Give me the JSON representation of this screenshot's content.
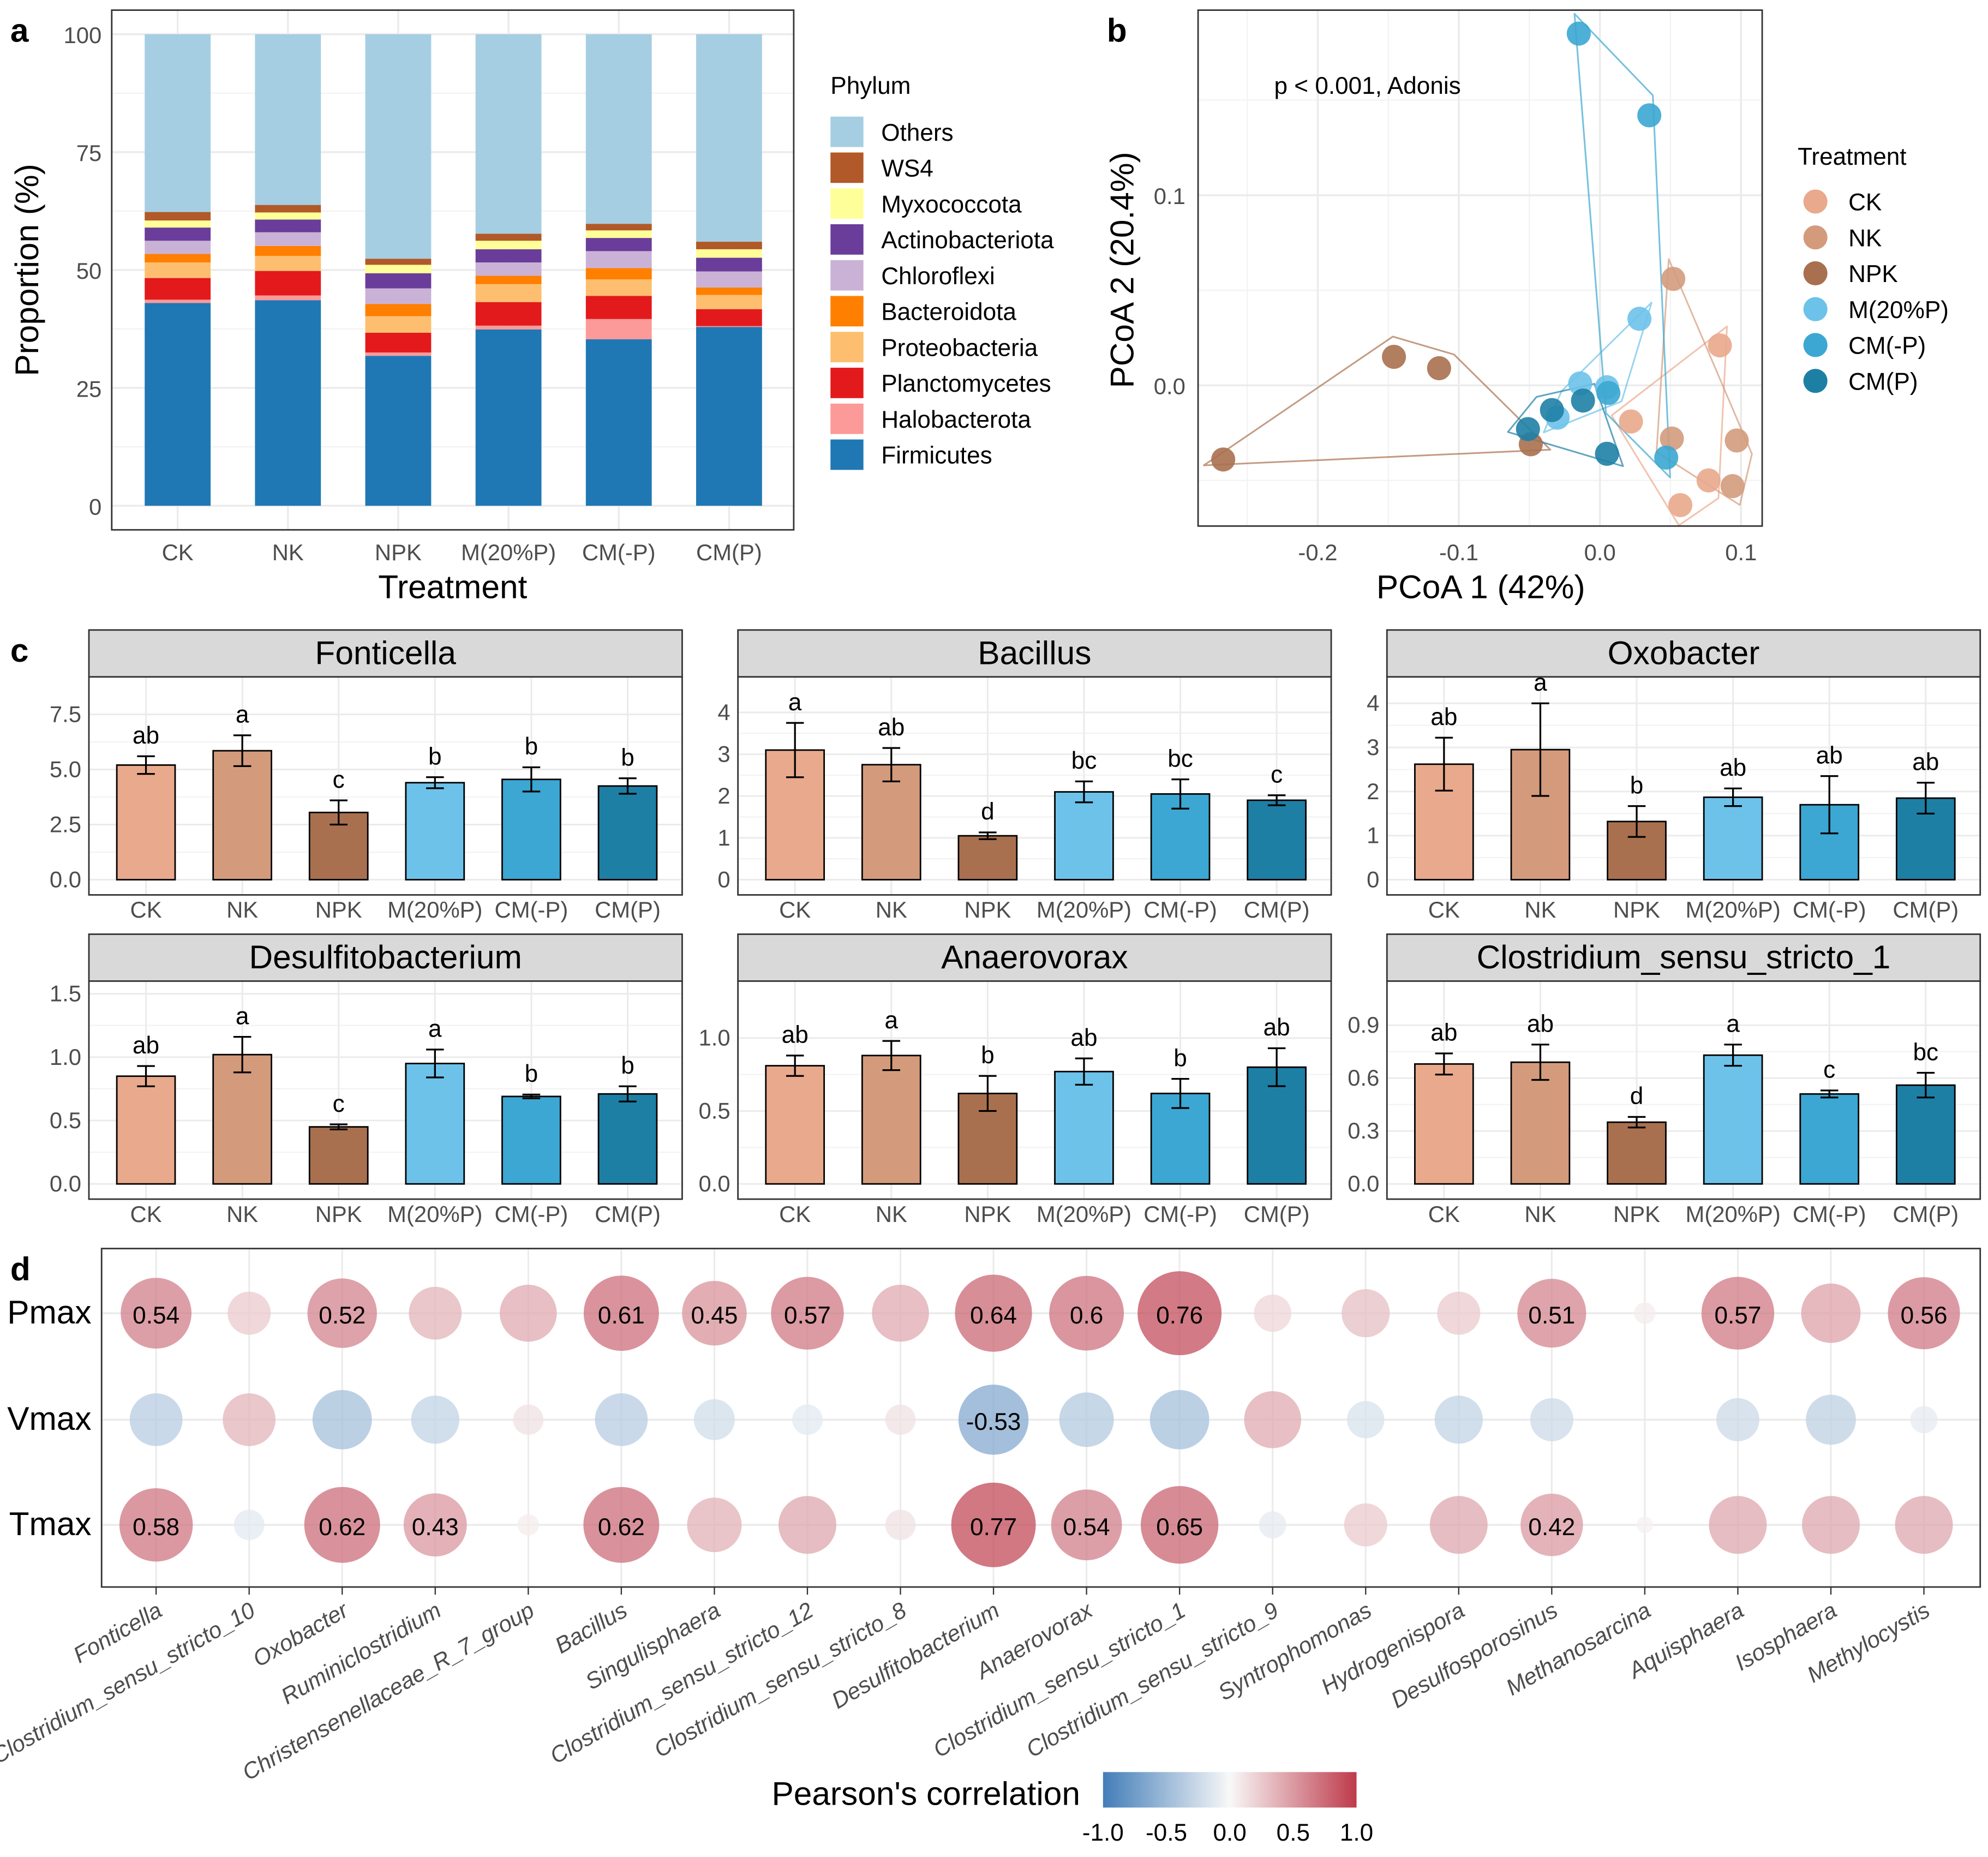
{
  "treatment_colors": {
    "CK": "#E9A98C",
    "NK": "#D39B7C",
    "NPK": "#A9704F",
    "M(20%P)": "#6DC2EA",
    "CM(-P)": "#3BA7D2",
    "CM(P)": "#1E7FA5"
  },
  "chart_data": [
    {
      "panel_label": "a",
      "type": "bar",
      "stacked": true,
      "categories": [
        "CK",
        "NK",
        "NPK",
        "M(20%P)",
        "CM(-P)",
        "CM(P)"
      ],
      "xlabel": "Treatment",
      "ylabel": "Proportion (%)",
      "ylim": [
        0,
        100
      ],
      "yticks": [
        0,
        25,
        50,
        75,
        100
      ],
      "grid": true,
      "legend_title": "Phylum",
      "legend_position": "right",
      "series": [
        {
          "name": "Firmicutes",
          "color": "#1F78B4",
          "values": [
            43.0,
            43.6,
            31.8,
            37.4,
            35.3,
            37.9
          ]
        },
        {
          "name": "Halobacterota",
          "color": "#FB9A99",
          "values": [
            0.7,
            1.0,
            0.7,
            0.8,
            4.3,
            0.2
          ]
        },
        {
          "name": "Planctomycetes",
          "color": "#E31A1C",
          "values": [
            4.6,
            5.2,
            4.2,
            5.0,
            4.9,
            3.6
          ]
        },
        {
          "name": "Proteobacteria",
          "color": "#FDBF6F",
          "values": [
            3.3,
            3.2,
            3.5,
            3.8,
            3.5,
            3.0
          ]
        },
        {
          "name": "Bacteroidota",
          "color": "#FF7F00",
          "values": [
            1.8,
            2.1,
            2.6,
            1.8,
            2.4,
            1.6
          ]
        },
        {
          "name": "Chloroflexi",
          "color": "#CAB2D6",
          "values": [
            2.8,
            2.9,
            3.3,
            2.8,
            3.6,
            3.4
          ]
        },
        {
          "name": "Actinobacteriota",
          "color": "#6A3D9A",
          "values": [
            2.8,
            2.7,
            3.2,
            2.8,
            2.8,
            2.9
          ]
        },
        {
          "name": "Myxococcota",
          "color": "#FFFF99",
          "values": [
            1.5,
            1.5,
            1.8,
            1.8,
            1.6,
            1.8
          ]
        },
        {
          "name": "WS4",
          "color": "#B15928",
          "values": [
            1.8,
            1.6,
            1.3,
            1.5,
            1.4,
            1.6
          ]
        },
        {
          "name": "Others",
          "color": "#A6CEE3",
          "values": [
            37.7,
            36.2,
            47.6,
            42.3,
            40.2,
            44.0
          ]
        }
      ]
    },
    {
      "panel_label": "b",
      "type": "scatter",
      "xlabel": "PCoA 1 (42%)",
      "ylabel": "PCoA 2 (20.4%)",
      "xlim": [
        -0.285,
        0.115
      ],
      "ylim": [
        -0.074,
        0.197
      ],
      "xticks": [
        "-0.2",
        "-0.1",
        "0.0",
        "0.1"
      ],
      "yticks": [
        "0.0",
        "0.1"
      ],
      "grid": true,
      "annotation": "p < 0.001, Adonis",
      "legend_title": "Treatment",
      "legend_position": "right",
      "hulls": true,
      "series": [
        {
          "name": "CK",
          "points": [
            [
              0.022,
              -0.019
            ],
            [
              0.085,
              0.021
            ],
            [
              0.077,
              -0.05
            ],
            [
              0.057,
              -0.063
            ]
          ]
        },
        {
          "name": "NK",
          "points": [
            [
              0.052,
              0.056
            ],
            [
              0.051,
              -0.028
            ],
            [
              0.097,
              -0.029
            ],
            [
              0.094,
              -0.053
            ]
          ]
        },
        {
          "name": "NPK",
          "points": [
            [
              -0.267,
              -0.039
            ],
            [
              -0.146,
              0.015
            ],
            [
              -0.114,
              0.009
            ],
            [
              -0.049,
              -0.031
            ]
          ]
        },
        {
          "name": "M(20%P)",
          "points": [
            [
              0.028,
              0.035
            ],
            [
              -0.014,
              0.001
            ],
            [
              0.005,
              -0.001
            ],
            [
              -0.03,
              -0.017
            ]
          ]
        },
        {
          "name": "CM(-P)",
          "points": [
            [
              -0.015,
              0.185
            ],
            [
              0.035,
              0.142
            ],
            [
              0.047,
              -0.038
            ],
            [
              0.006,
              -0.004
            ]
          ]
        },
        {
          "name": "CM(P)",
          "points": [
            [
              -0.012,
              -0.008
            ],
            [
              -0.034,
              -0.013
            ],
            [
              -0.051,
              -0.023
            ],
            [
              0.005,
              -0.036
            ]
          ]
        }
      ]
    },
    {
      "panel_label": "c",
      "type": "bar",
      "error_bars": "se",
      "categories": [
        "CK",
        "NK",
        "NPK",
        "M(20%P)",
        "CM(-P)",
        "CM(P)"
      ],
      "facets": [
        {
          "title": "Fonticella",
          "ylim": [
            0,
            9.2
          ],
          "yticks": [
            "0.0",
            "2.5",
            "5.0",
            "7.5"
          ],
          "mean": [
            5.2,
            5.85,
            3.05,
            4.4,
            4.55,
            4.25
          ],
          "se": [
            0.4,
            0.7,
            0.55,
            0.25,
            0.55,
            0.35
          ],
          "letters": [
            "ab",
            "a",
            "c",
            "b",
            "b",
            "b"
          ]
        },
        {
          "title": "Bacillus",
          "ylim": [
            0,
            4.85
          ],
          "yticks": [
            "0",
            "1",
            "2",
            "3",
            "4"
          ],
          "mean": [
            3.1,
            2.75,
            1.05,
            2.1,
            2.05,
            1.9
          ],
          "se": [
            0.65,
            0.4,
            0.08,
            0.25,
            0.35,
            0.12
          ],
          "letters": [
            "a",
            "ab",
            "d",
            "bc",
            "bc",
            "c"
          ]
        },
        {
          "title": "Oxobacter",
          "ylim": [
            0,
            4.6
          ],
          "yticks": [
            "0",
            "1",
            "2",
            "3",
            "4"
          ],
          "mean": [
            2.62,
            2.95,
            1.32,
            1.87,
            1.7,
            1.85
          ],
          "se": [
            0.6,
            1.05,
            0.35,
            0.2,
            0.65,
            0.35
          ],
          "letters": [
            "ab",
            "a",
            "b",
            "ab",
            "ab",
            "ab"
          ]
        },
        {
          "title": "Desulfitobacterium",
          "ylim": [
            0,
            1.6
          ],
          "yticks": [
            "0.0",
            "0.5",
            "1.0",
            "1.5"
          ],
          "mean": [
            0.85,
            1.02,
            0.45,
            0.95,
            0.69,
            0.71
          ],
          "se": [
            0.08,
            0.14,
            0.02,
            0.11,
            0.015,
            0.06
          ],
          "letters": [
            "ab",
            "a",
            "c",
            "a",
            "b",
            "b"
          ]
        },
        {
          "title": "Anaerovorax",
          "ylim": [
            0,
            1.39
          ],
          "yticks": [
            "0.0",
            "0.5",
            "1.0"
          ],
          "mean": [
            0.81,
            0.88,
            0.62,
            0.77,
            0.62,
            0.8
          ],
          "se": [
            0.07,
            0.1,
            0.12,
            0.09,
            0.1,
            0.13
          ],
          "letters": [
            "ab",
            "a",
            "b",
            "ab",
            "b",
            "ab"
          ]
        },
        {
          "title": "Clostridium_sensu_stricto_1",
          "ylim": [
            0,
            1.15
          ],
          "yticks": [
            "0.0",
            "0.3",
            "0.6",
            "0.9"
          ],
          "mean": [
            0.68,
            0.69,
            0.35,
            0.73,
            0.51,
            0.56
          ],
          "se": [
            0.06,
            0.1,
            0.03,
            0.06,
            0.02,
            0.07
          ],
          "letters": [
            "ab",
            "ab",
            "d",
            "a",
            "c",
            "bc"
          ]
        }
      ]
    },
    {
      "panel_label": "d",
      "type": "heatmap",
      "rows": [
        "Pmax",
        "Vmax",
        "Tmax"
      ],
      "columns": [
        "Fonticella",
        "Clostridium_sensu_stricto_10",
        "Oxobacter",
        "Ruminiclostridium",
        "Christensenellaceae_R_7_group",
        "Bacillus",
        "Singulisphaera",
        "Clostridium_sensu_stricto_12",
        "Clostridium_sensu_stricto_8",
        "Desulfitobacterium",
        "Anaerovorax",
        "Clostridium_sensu_stricto_1",
        "Clostridium_sensu_stricto_9",
        "Syntrophomonas",
        "Hydrogenispora",
        "Desulfosporosinus",
        "Methanosarcina",
        "Aquisphaera",
        "Isosphaera",
        "Methylocystis"
      ],
      "values": [
        [
          0.54,
          0.2,
          0.52,
          0.3,
          0.35,
          0.61,
          0.45,
          0.57,
          0.35,
          0.64,
          0.6,
          0.76,
          0.15,
          0.25,
          0.2,
          0.51,
          0.05,
          0.57,
          0.38,
          0.56
        ],
        [
          -0.3,
          0.3,
          -0.38,
          -0.25,
          0.1,
          -0.3,
          -0.18,
          -0.1,
          0.1,
          -0.53,
          -0.32,
          -0.38,
          0.35,
          -0.15,
          -0.25,
          -0.2,
          0.0,
          -0.2,
          -0.27,
          -0.08
        ],
        [
          0.58,
          -0.1,
          0.62,
          0.43,
          0.05,
          0.62,
          0.32,
          0.36,
          0.1,
          0.77,
          0.54,
          0.65,
          -0.08,
          0.2,
          0.36,
          0.42,
          0.03,
          0.36,
          0.36,
          0.36
        ]
      ],
      "label_threshold": 0.4,
      "legend_title": "Pearson's correlation",
      "legend_position": "bottom",
      "colorbar_ticks": [
        "-1.0",
        "-0.5",
        "0.0",
        "0.5",
        "1.0"
      ],
      "color_low": "#2166AC",
      "color_mid": "#F7F7F7",
      "color_high": "#B2182B"
    }
  ]
}
